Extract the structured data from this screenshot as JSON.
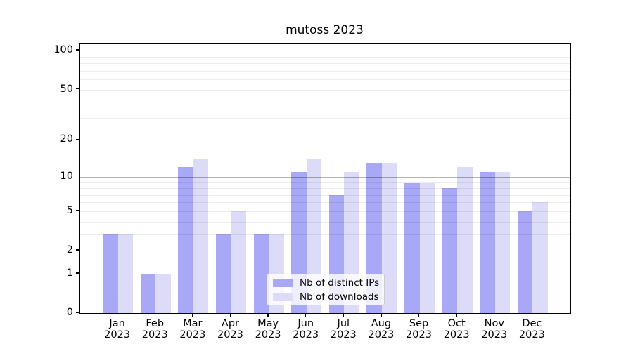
{
  "title": "mutoss 2023",
  "year_label": "2023",
  "months": [
    "Jan",
    "Feb",
    "Mar",
    "Apr",
    "May",
    "Jun",
    "Jul",
    "Aug",
    "Sep",
    "Oct",
    "Nov",
    "Dec"
  ],
  "chart_data": {
    "type": "bar",
    "title": "mutoss 2023",
    "categories": [
      "Jan 2023",
      "Feb 2023",
      "Mar 2023",
      "Apr 2023",
      "May 2023",
      "Jun 2023",
      "Jul 2023",
      "Aug 2023",
      "Sep 2023",
      "Oct 2023",
      "Nov 2023",
      "Dec 2023"
    ],
    "series": [
      {
        "name": "Nb of distinct IPs",
        "color": "#a8a8f6",
        "values": [
          3,
          1,
          12,
          3,
          3,
          11,
          7,
          13,
          9,
          8,
          11,
          5
        ]
      },
      {
        "name": "Nb of downloads",
        "color": "#dcdcf9",
        "values": [
          3,
          1,
          14,
          5,
          3,
          14,
          11,
          13,
          9,
          12,
          11,
          6
        ]
      }
    ],
    "xlabel": "",
    "ylabel": "",
    "yscale": "log1p",
    "ylim": [
      0,
      113
    ],
    "yticks": [
      {
        "v": 0,
        "label": "0"
      },
      {
        "v": 1,
        "label": "1"
      },
      {
        "v": 2,
        "label": "2"
      },
      {
        "v": 5,
        "label": "5"
      },
      {
        "v": 10,
        "label": "10"
      },
      {
        "v": 20,
        "label": "20"
      },
      {
        "v": 50,
        "label": "50"
      },
      {
        "v": 100,
        "label": "100"
      }
    ],
    "major_gridlines": [
      1,
      10,
      100
    ],
    "minor_gridlines": [
      2,
      3,
      4,
      5,
      6,
      7,
      8,
      9,
      20,
      30,
      40,
      50,
      60,
      70,
      80,
      90
    ],
    "grid": true,
    "legend_position": "lower-center"
  },
  "style": {
    "bar_dark": "#a8a8f6",
    "bar_light": "#dcdcf9",
    "major_grid_color": "#b3b3b3",
    "minor_grid_color": "#ececec",
    "axis_color": "#000000",
    "legend_border_color": "#cccccc",
    "background": "#ffffff"
  }
}
